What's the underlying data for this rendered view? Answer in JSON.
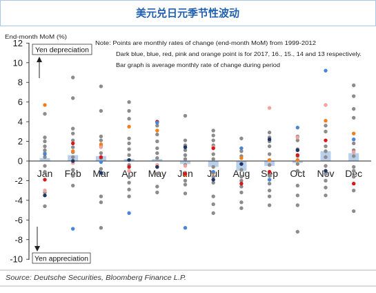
{
  "colors": {
    "title": "#1f5fb0",
    "frame": "#a9c6e6",
    "axis": "#222222"
  },
  "source": "Source: Deutsche Securities, Bloomberg Finance L.P.",
  "chart_data": {
    "type": "scatter",
    "title": "美元兑日元季节性波动",
    "xlabel": "",
    "ylabel": "End-month MoM (%)",
    "ylim": [
      -10,
      12
    ],
    "yticks": [
      12,
      10,
      8,
      6,
      4,
      2,
      0,
      -2,
      -4,
      -6,
      -8,
      -10
    ],
    "grid": false,
    "legend": "none",
    "notes": [
      "Note: Points are monthly rates of change (end-month MoM) from 1999-2012",
      "Dark blue, blue, red, pink and orange point is for 2017, 16., 15., 14 and 13 respectively.",
      "Bar graph is average monthly rate of change during period"
    ],
    "annotations": {
      "up": "Yen depreciation",
      "down": "Yen appreciation"
    },
    "categories": [
      "Jan",
      "Feb",
      "Mar",
      "Apr",
      "May",
      "Jun",
      "Jul",
      "Aug",
      "Sep",
      "Oct",
      "Nov",
      "Dec"
    ],
    "average_bars": {
      "color": "#b8d0ec",
      "values": [
        0.3,
        0.6,
        0.5,
        0.2,
        0.2,
        -0.3,
        -0.6,
        -1.0,
        -0.5,
        -0.2,
        1.0,
        0.8
      ]
    },
    "history_points": {
      "color": "#8c8c8c",
      "values": [
        [
          4.8,
          2.4,
          2.0,
          1.5,
          1.1,
          0.8,
          0.4,
          -0.5,
          -1.1,
          -3.2,
          -4.6
        ],
        [
          8.5,
          6.4,
          3.3,
          2.8,
          2.1,
          1.4,
          0.9,
          0.4,
          -0.9,
          -1.5,
          -2.5
        ],
        [
          7.6,
          5.1,
          2.5,
          2.1,
          1.5,
          0.8,
          0.3,
          -0.8,
          -3.6,
          -4.2,
          -6.8
        ],
        [
          6.0,
          5.1,
          4.3,
          2.3,
          1.8,
          1.2,
          0.6,
          -0.4,
          -1.6,
          -2.2,
          -2.9,
          -3.6
        ],
        [
          4.0,
          3.6,
          2.7,
          2.0,
          1.3,
          0.8,
          0.3,
          -0.6,
          -1.3,
          -2.6,
          -3.2
        ],
        [
          4.6,
          2.1,
          1.6,
          1.1,
          0.6,
          0.2,
          -0.4,
          -1.2,
          -2.0,
          -2.4,
          -3.3
        ],
        [
          3.1,
          2.6,
          2.1,
          1.6,
          0.7,
          0.2,
          -0.6,
          -1.6,
          -2.2,
          -3.6,
          -4.4,
          -5.3
        ],
        [
          2.3,
          1.0,
          0.5,
          -0.3,
          -0.9,
          -1.6,
          -2.0,
          -2.6,
          -3.2,
          -4.2,
          -4.8
        ],
        [
          2.9,
          2.4,
          2.0,
          1.5,
          0.7,
          -0.4,
          -1.5,
          -2.3,
          -3.0,
          -3.6,
          -4.5
        ],
        [
          2.5,
          2.1,
          1.2,
          0.5,
          -0.3,
          -1.0,
          -2.5,
          -3.5,
          -4.5,
          -7.2
        ],
        [
          3.6,
          3.0,
          1.5,
          1.0,
          0.4,
          -0.5,
          -1.3,
          -2.0,
          -2.7,
          -3.5
        ],
        [
          7.7,
          6.6,
          5.3,
          4.4,
          1.8,
          1.1,
          0.5,
          -0.6,
          -1.0,
          -1.6,
          -3.0,
          -5.1
        ]
      ]
    },
    "series": [
      {
        "color": "#f07f1e",
        "values": [
          5.7,
          1.0,
          1.7,
          3.5,
          3.1,
          -1.4,
          -1.2,
          0.3,
          0.1,
          0.1,
          4.1,
          2.8
        ]
      },
      {
        "color": "#f4a39c",
        "values": [
          -3.0,
          -0.2,
          1.4,
          -1.0,
          -0.4,
          -0.5,
          1.4,
          1.3,
          5.4,
          2.4,
          5.7,
          0.9
        ]
      },
      {
        "color": "#d7191c",
        "values": [
          -1.9,
          1.8,
          0.4,
          -0.6,
          4.0,
          -1.3,
          1.3,
          -2.3,
          -1.1,
          0.6,
          2.1,
          -2.3
        ]
      },
      {
        "color": "#4a86d8",
        "values": [
          0.7,
          -6.9,
          -0.1,
          -5.3,
          3.9,
          -6.8,
          -1.1,
          1.3,
          -1.9,
          3.4,
          9.2,
          2.2
        ]
      },
      {
        "color": "#1f3566",
        "values": [
          -3.5,
          0.0,
          -1.2,
          0.1,
          -0.6,
          1.4,
          -1.9,
          -0.3,
          2.2,
          1.1,
          -1.0,
          null
        ]
      }
    ]
  }
}
